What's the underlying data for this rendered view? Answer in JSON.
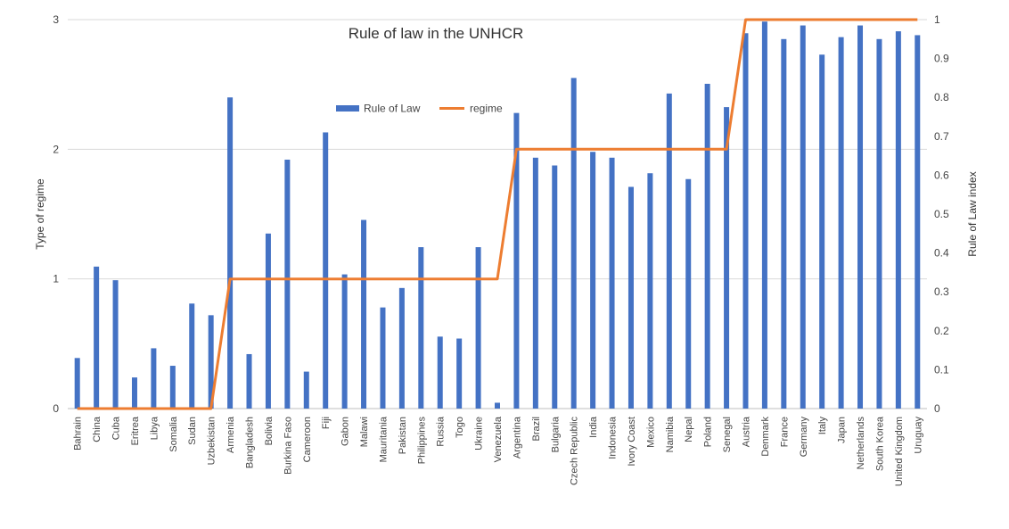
{
  "chart_data": {
    "type": "bar+line",
    "title": "Rule of law in the UNHCR",
    "ylabel_left": "Type of regime",
    "ylabel_right": "Rule of Law index",
    "ylim_left": [
      0,
      3
    ],
    "ylim_right": [
      0,
      1
    ],
    "yticks_left": [
      "0",
      "1",
      "2",
      "3"
    ],
    "yticks_right": [
      "0",
      "0.1",
      "0.2",
      "0.3",
      "0.4",
      "0.5",
      "0.6",
      "0.7",
      "0.8",
      "0.9",
      "1"
    ],
    "grid": true,
    "legend_position": "top-center",
    "categories": [
      "Bahrain",
      "China",
      "Cuba",
      "Eritrea",
      "Libya",
      "Somalia",
      "Sudan",
      "Uzbekistan",
      "Armenia",
      "Bangladesh",
      "Bolivia",
      "Burkina Faso",
      "Cameroon",
      "Fiji",
      "Gabon",
      "Malawi",
      "Mauritania",
      "Pakistan",
      "Philippines",
      "Russia",
      "Togo",
      "Ukraine",
      "Venezuela",
      "Argentina",
      "Brazil",
      "Bulgaria",
      "Czech Republic",
      "India",
      "Indonesia",
      "Ivory Coast",
      "Mexico",
      "Namibia",
      "Nepal",
      "Poland",
      "Senegal",
      "Austria",
      "Denmark",
      "France",
      "Germany",
      "Italy",
      "Japan",
      "Netherlands",
      "South Korea",
      "United Kingdom",
      "Uruguay"
    ],
    "series": [
      {
        "name": "Rule of Law",
        "type": "bar",
        "axis": "right",
        "color": "#4472C4",
        "values": [
          0.13,
          0.365,
          0.33,
          0.08,
          0.155,
          0.11,
          0.27,
          0.24,
          0.8,
          0.14,
          0.45,
          0.64,
          0.095,
          0.71,
          0.345,
          0.485,
          0.26,
          0.31,
          0.415,
          0.185,
          0.18,
          0.415,
          0.015,
          0.76,
          0.645,
          0.625,
          0.85,
          0.66,
          0.645,
          0.57,
          0.605,
          0.81,
          0.59,
          0.835,
          0.775,
          0.965,
          0.995,
          0.95,
          0.985,
          0.91,
          0.955,
          0.985,
          0.95,
          0.97,
          0.96
        ]
      },
      {
        "name": "regime",
        "type": "line",
        "axis": "left",
        "color": "#ED7D31",
        "values": [
          0,
          0,
          0,
          0,
          0,
          0,
          0,
          0,
          1,
          1,
          1,
          1,
          1,
          1,
          1,
          1,
          1,
          1,
          1,
          1,
          1,
          1,
          1,
          2,
          2,
          2,
          2,
          2,
          2,
          2,
          2,
          2,
          2,
          2,
          2,
          3,
          3,
          3,
          3,
          3,
          3,
          3,
          3,
          3,
          3
        ]
      }
    ]
  }
}
